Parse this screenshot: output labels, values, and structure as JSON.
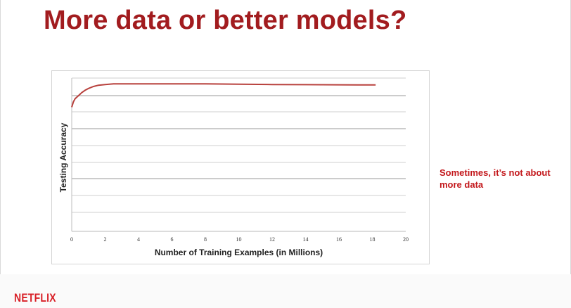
{
  "slide": {
    "title": "More data or better models?",
    "annotation": "Sometimes, it’s not about more data",
    "logo": "NETFLIX"
  },
  "colors": {
    "title": "#a21c1f",
    "annotation": "#c3171b",
    "logo": "#d81f26",
    "series_line": "#b8413d"
  },
  "chart_data": {
    "type": "line",
    "xlabel": "Number of Training Examples (in Millions)",
    "ylabel": "Testing Accuracy",
    "xlim": [
      0,
      20
    ],
    "x_ticks": [
      0,
      2,
      4,
      6,
      8,
      10,
      12,
      14,
      16,
      18,
      20
    ],
    "grid": "horizontal",
    "gridline_count": 9,
    "y_tick_labels": "none",
    "series": [
      {
        "x": [
          0,
          0.1,
          0.2,
          0.4,
          0.6,
          0.8,
          1.0,
          1.3,
          1.6,
          2.0,
          2.5,
          3,
          4,
          6,
          8,
          10,
          12,
          14,
          16,
          18.2
        ],
        "y": [
          0.81,
          0.845,
          0.865,
          0.885,
          0.905,
          0.92,
          0.932,
          0.945,
          0.953,
          0.958,
          0.962,
          0.962,
          0.962,
          0.962,
          0.962,
          0.96,
          0.958,
          0.957,
          0.956,
          0.955
        ]
      }
    ]
  }
}
